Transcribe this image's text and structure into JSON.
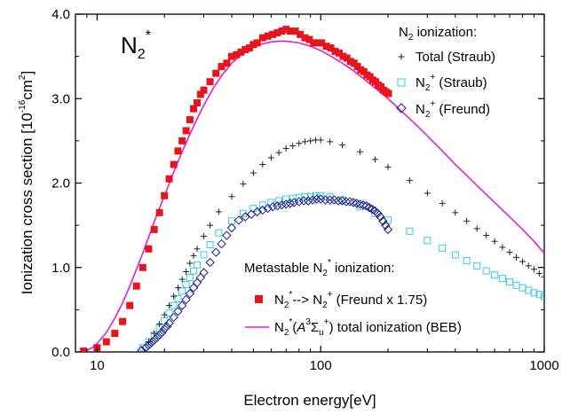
{
  "chart_data": {
    "type": "scatter",
    "x_scale": "log",
    "xlim": [
      8,
      1000
    ],
    "ylim": [
      0,
      4.0
    ],
    "xlabel": "Electron energy[eV]",
    "ylabel": "Ionization cross section [10^-16cm^2]",
    "ylabel_parts": {
      "main": "Ionization cross section [10",
      "exp": "-16",
      "unit": "cm",
      "unit_exp": "2",
      "close": "]"
    },
    "x_ticks": [
      {
        "value": 10,
        "label": "10"
      },
      {
        "value": 100,
        "label": "100"
      },
      {
        "value": 1000,
        "label": "1000"
      }
    ],
    "y_ticks": [
      {
        "value": 0,
        "label": "0.0"
      },
      {
        "value": 1,
        "label": "1.0"
      },
      {
        "value": 2,
        "label": "2.0"
      },
      {
        "value": 3,
        "label": "3.0"
      },
      {
        "value": 4,
        "label": "4.0"
      }
    ],
    "annotation": {
      "base": "N",
      "sub": "2",
      "sup": "*"
    },
    "legend_n2": {
      "title_base": "N",
      "title_sub": "2",
      "title_rest": " ionization:",
      "entries": [
        {
          "series": "total_straub",
          "text": "Total (Straub)"
        },
        {
          "series": "n2plus_straub",
          "base": "N",
          "sub": "2",
          "sup": "+",
          "rest": " (Straub)"
        },
        {
          "series": "n2plus_freund",
          "base": "N",
          "sub": "2",
          "sup": "+",
          "rest": " (Freund)"
        }
      ]
    },
    "legend_meta": {
      "title_main": "Metastable N",
      "title_sub": "2",
      "title_sup": "*",
      "title_rest": " ionization:",
      "entry_squares": {
        "base": "N",
        "sub": "2",
        "sup": "*",
        "mid": "--> N",
        "sub2": "2",
        "sup2": "+",
        "rest": " (Freund x 1.75)"
      },
      "entry_beb": {
        "base": "N",
        "sub": "2",
        "sup": "*",
        "p1": "(",
        "italic": "A",
        "sup3": "3",
        "sigma": "Σ",
        "sub_u": "u",
        "sup_plus": "+",
        "rest": ") total ionization (BEB)"
      }
    },
    "colors": {
      "metastable_squares": "#e8141c",
      "beb_line": "#e020d0",
      "n2plus_straub": "#3cc8e8",
      "n2plus_freund": "#1c1c8c",
      "total_straub": "#222222",
      "axes": "#000000"
    },
    "series": [
      {
        "id": "metastable_freund",
        "marker": "filled-square",
        "x": [
          8.7,
          10,
          11,
          12,
          13,
          14,
          15,
          16,
          17,
          18,
          19,
          20,
          21,
          22,
          23,
          24,
          25,
          26,
          27,
          28,
          29,
          30,
          32,
          34,
          36,
          38,
          40,
          42,
          44,
          46,
          48,
          50,
          52,
          55,
          58,
          61,
          64,
          67,
          70,
          73,
          77,
          81,
          85,
          89,
          93,
          97,
          101,
          106,
          111,
          116,
          121,
          126,
          131,
          136,
          141,
          146,
          151,
          156,
          161,
          166,
          171,
          176,
          181,
          186,
          191,
          196,
          201
        ],
        "y": [
          0.01,
          0.05,
          0.12,
          0.22,
          0.36,
          0.55,
          0.78,
          1.0,
          1.22,
          1.45,
          1.65,
          1.85,
          2.05,
          2.22,
          2.38,
          2.5,
          2.62,
          2.75,
          2.88,
          2.95,
          3.05,
          3.1,
          3.2,
          3.3,
          3.38,
          3.42,
          3.5,
          3.52,
          3.55,
          3.58,
          3.6,
          3.64,
          3.66,
          3.72,
          3.74,
          3.76,
          3.78,
          3.8,
          3.82,
          3.8,
          3.8,
          3.76,
          3.72,
          3.7,
          3.66,
          3.66,
          3.66,
          3.62,
          3.6,
          3.56,
          3.54,
          3.5,
          3.48,
          3.44,
          3.42,
          3.38,
          3.34,
          3.32,
          3.28,
          3.26,
          3.22,
          3.2,
          3.16,
          3.14,
          3.1,
          3.08,
          3.06
        ]
      },
      {
        "id": "beb_total",
        "marker": "line",
        "x": [
          8.5,
          9,
          9.5,
          10,
          11,
          12,
          13,
          14,
          15,
          16,
          17,
          18,
          19,
          20,
          22,
          24,
          26,
          28,
          30,
          33,
          36,
          40,
          45,
          50,
          55,
          60,
          65,
          70,
          75,
          80,
          90,
          100,
          110,
          125,
          140,
          160,
          180,
          200,
          230,
          260,
          300,
          350,
          400,
          450,
          500,
          600,
          700,
          800,
          900,
          1000
        ],
        "y": [
          0.0,
          0.02,
          0.05,
          0.1,
          0.23,
          0.4,
          0.58,
          0.78,
          0.98,
          1.17,
          1.36,
          1.54,
          1.7,
          1.85,
          2.13,
          2.37,
          2.58,
          2.76,
          2.92,
          3.12,
          3.27,
          3.42,
          3.54,
          3.61,
          3.65,
          3.67,
          3.68,
          3.68,
          3.67,
          3.66,
          3.62,
          3.57,
          3.51,
          3.42,
          3.33,
          3.21,
          3.1,
          3.0,
          2.85,
          2.72,
          2.56,
          2.38,
          2.22,
          2.09,
          1.97,
          1.77,
          1.6,
          1.45,
          1.31,
          1.17
        ]
      },
      {
        "id": "total_straub",
        "marker": "plus",
        "x": [
          17,
          18,
          19,
          20,
          21,
          22,
          23,
          24,
          25,
          26,
          27,
          28,
          30,
          32,
          35,
          40,
          45,
          50,
          55,
          60,
          65,
          70,
          75,
          80,
          85,
          90,
          95,
          100,
          110,
          125,
          150,
          175,
          200,
          250,
          300,
          350,
          400,
          450,
          500,
          550,
          600,
          650,
          700,
          750,
          800,
          850,
          900,
          950,
          1000
        ],
        "y": [
          0.12,
          0.22,
          0.33,
          0.44,
          0.55,
          0.66,
          0.76,
          0.86,
          0.95,
          1.05,
          1.14,
          1.22,
          1.37,
          1.5,
          1.66,
          1.84,
          1.99,
          2.12,
          2.22,
          2.3,
          2.36,
          2.41,
          2.44,
          2.47,
          2.49,
          2.5,
          2.51,
          2.51,
          2.49,
          2.45,
          2.37,
          2.28,
          2.19,
          2.03,
          1.88,
          1.76,
          1.65,
          1.55,
          1.46,
          1.38,
          1.31,
          1.24,
          1.18,
          1.12,
          1.07,
          1.02,
          0.98,
          0.93,
          0.89
        ]
      },
      {
        "id": "n2plus_straub",
        "marker": "open-square",
        "x": [
          16,
          17,
          18,
          19,
          20,
          21,
          22,
          23,
          24,
          25,
          26,
          27,
          28,
          30,
          32,
          35,
          40,
          45,
          50,
          55,
          60,
          65,
          70,
          75,
          80,
          85,
          90,
          95,
          100,
          110,
          125,
          150,
          175,
          200,
          250,
          300,
          350,
          400,
          450,
          500,
          550,
          600,
          650,
          700,
          750,
          800,
          850,
          900,
          950,
          1000
        ],
        "y": [
          0.05,
          0.12,
          0.2,
          0.28,
          0.37,
          0.46,
          0.55,
          0.63,
          0.72,
          0.8,
          0.88,
          0.96,
          1.03,
          1.15,
          1.27,
          1.41,
          1.55,
          1.64,
          1.7,
          1.74,
          1.77,
          1.79,
          1.81,
          1.82,
          1.83,
          1.84,
          1.84,
          1.85,
          1.85,
          1.84,
          1.8,
          1.72,
          1.64,
          1.56,
          1.43,
          1.32,
          1.23,
          1.15,
          1.08,
          1.02,
          0.96,
          0.91,
          0.87,
          0.83,
          0.79,
          0.76,
          0.73,
          0.7,
          0.68,
          0.66
        ]
      },
      {
        "id": "n2plus_freund",
        "marker": "open-diamond",
        "x": [
          15.8,
          16.5,
          17,
          17.5,
          18,
          18.5,
          19,
          19.5,
          20,
          20.5,
          21,
          22,
          23,
          24,
          25,
          26,
          27,
          28,
          29,
          30,
          32,
          34,
          36,
          38,
          40,
          43,
          46,
          49,
          52,
          55,
          58,
          61,
          64,
          67,
          70,
          73,
          76,
          80,
          84,
          88,
          92,
          96,
          100,
          105,
          110,
          115,
          120,
          125,
          130,
          135,
          140,
          145,
          150,
          155,
          160,
          165,
          170,
          175,
          180,
          185,
          190,
          195,
          200
        ],
        "y": [
          0.02,
          0.05,
          0.08,
          0.11,
          0.14,
          0.17,
          0.2,
          0.23,
          0.27,
          0.3,
          0.34,
          0.41,
          0.48,
          0.55,
          0.62,
          0.69,
          0.76,
          0.82,
          0.88,
          0.94,
          1.06,
          1.18,
          1.28,
          1.38,
          1.47,
          1.56,
          1.6,
          1.63,
          1.66,
          1.68,
          1.7,
          1.72,
          1.73,
          1.74,
          1.75,
          1.76,
          1.77,
          1.78,
          1.79,
          1.79,
          1.8,
          1.81,
          1.81,
          1.8,
          1.8,
          1.8,
          1.79,
          1.79,
          1.78,
          1.78,
          1.77,
          1.76,
          1.75,
          1.74,
          1.73,
          1.71,
          1.69,
          1.67,
          1.64,
          1.6,
          1.55,
          1.5,
          1.45
        ]
      }
    ]
  }
}
